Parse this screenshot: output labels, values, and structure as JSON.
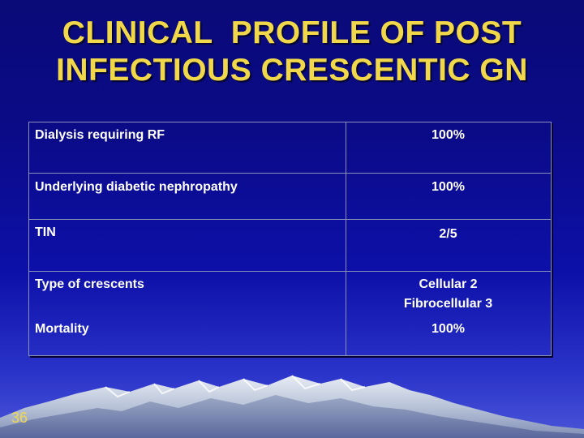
{
  "slide": {
    "title_lines": [
      "CLINICAL  PROFILE OF POST",
      "INFECTIOUS CRESCENTIC GN"
    ],
    "slide_number": "36",
    "colors": {
      "title": "#f0d84a",
      "text": "#ffffff",
      "background": "#0b0b88",
      "border": "#8a8fb8"
    }
  },
  "table": {
    "rows": [
      {
        "label": "Dialysis requiring RF",
        "value_lines": [
          "100%"
        ]
      },
      {
        "label": "Underlying diabetic nephropathy",
        "value_lines": [
          "100%"
        ]
      },
      {
        "label": "TIN",
        "value_lines": [
          "2/5"
        ]
      },
      {
        "label": "Type of crescents",
        "value_lines": [
          "Cellular 2",
          "Fibrocellular 3"
        ]
      },
      {
        "label": "Mortality",
        "value_lines": [
          "100%"
        ]
      }
    ]
  }
}
